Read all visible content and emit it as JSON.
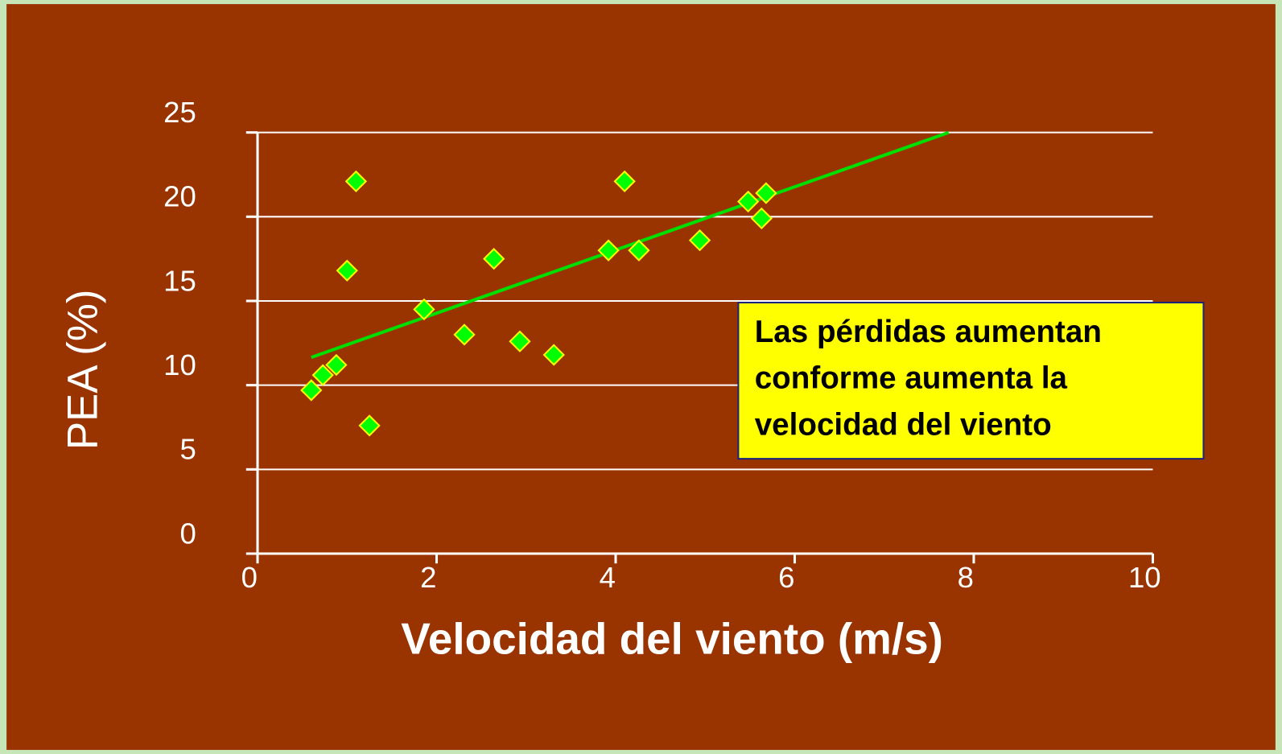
{
  "chart_data": {
    "type": "scatter",
    "xlabel": "Velocidad del viento (m/s)",
    "ylabel": "PEA (%)",
    "x": [
      0.6,
      0.73,
      0.88,
      1.0,
      1.1,
      1.25,
      1.86,
      2.31,
      2.64,
      2.93,
      3.31,
      3.92,
      4.1,
      4.26,
      4.94,
      5.48,
      5.63,
      5.68
    ],
    "values": [
      9.7,
      10.6,
      11.2,
      16.8,
      22.1,
      7.6,
      14.5,
      13.0,
      17.5,
      12.6,
      11.8,
      18.0,
      22.1,
      18.0,
      18.6,
      20.9,
      19.9,
      21.4
    ],
    "color": "#00ff00",
    "marker_edge_color": "#ffff00",
    "trendline": {
      "x": [
        0.6,
        7.72
      ],
      "values": [
        11.65,
        25
      ],
      "color": "#00e000"
    },
    "xlim": [
      0,
      10
    ],
    "xticks": [
      0,
      2,
      4,
      6,
      8,
      10
    ],
    "ylim": [
      0,
      25
    ],
    "yticks": [
      0,
      5,
      10,
      15,
      20,
      25
    ],
    "grid": true,
    "annotation": "Las pérdidas aumentan conforme aumenta la velocidad del viento"
  }
}
